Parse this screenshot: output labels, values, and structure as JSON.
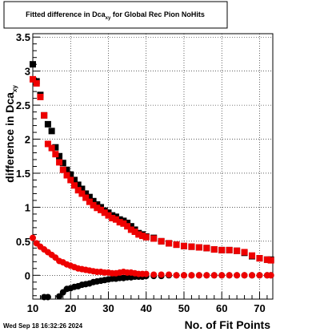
{
  "title_box": {
    "prefix": "Fitted difference in Dca",
    "subscript": "xy",
    "suffix": " for Global Rec Pion NoHits"
  },
  "footer": {
    "timestamp": "Wed Sep 18 16:32:26 2024"
  },
  "chart_data": {
    "type": "scatter",
    "xlabel": "No. of Fit Points",
    "ylabel": {
      "prefix": "difference in Dca",
      "subscript": "xy"
    },
    "xlim": [
      10,
      73.5
    ],
    "ylim": [
      -0.35,
      3.55
    ],
    "x_ticks": [
      10,
      20,
      30,
      40,
      50,
      60,
      70
    ],
    "y_ticks": [
      0,
      0.5,
      1,
      1.5,
      2,
      2.5,
      3,
      3.5
    ],
    "y_tick_labels": [
      "0",
      "0.5",
      "1",
      "1.5",
      "2",
      "2.5",
      "3",
      "3.5"
    ],
    "grid": true,
    "colors": {
      "black": "#000000",
      "red": "#ee0000"
    },
    "series": [
      {
        "color": "black",
        "marker": "square",
        "x": [
          10,
          11,
          12,
          13,
          14,
          15,
          16,
          17,
          18,
          19,
          20,
          21,
          22,
          23,
          24,
          25,
          26,
          27,
          28,
          29,
          30,
          31,
          32,
          33,
          34,
          35,
          36,
          37,
          38,
          39,
          40,
          42,
          44,
          46,
          48,
          50,
          52,
          54,
          56,
          58,
          60,
          62,
          64,
          66,
          68,
          70,
          72,
          73
        ],
        "y": [
          3.1,
          2.85,
          2.65,
          2.35,
          2.22,
          2.12,
          1.88,
          1.75,
          1.65,
          1.55,
          1.48,
          1.4,
          1.33,
          1.27,
          1.2,
          1.15,
          1.09,
          1.04,
          1.0,
          0.95,
          0.92,
          0.88,
          0.86,
          0.82,
          0.8,
          0.77,
          0.72,
          0.67,
          0.62,
          0.6,
          0.57,
          0.55,
          0.5,
          0.47,
          0.45,
          0.43,
          0.42,
          0.41,
          0.4,
          0.38,
          0.37,
          0.37,
          0.36,
          0.33,
          0.28,
          0.25,
          0.23,
          0.23
        ]
      },
      {
        "color": "red",
        "marker": "square",
        "x": [
          10,
          11,
          12,
          13,
          14,
          15,
          16,
          17,
          18,
          19,
          20,
          21,
          22,
          23,
          24,
          25,
          26,
          27,
          28,
          29,
          30,
          31,
          32,
          33,
          34,
          35,
          36,
          37,
          38,
          39,
          40,
          42,
          44,
          46,
          48,
          50,
          52,
          54,
          56,
          58,
          60,
          62,
          64,
          66,
          68,
          70,
          72,
          73
        ],
        "y": [
          2.88,
          2.82,
          2.62,
          2.35,
          1.93,
          1.87,
          1.78,
          1.66,
          1.55,
          1.47,
          1.4,
          1.32,
          1.25,
          1.2,
          1.14,
          1.08,
          1.03,
          0.99,
          0.96,
          0.92,
          0.88,
          0.84,
          0.82,
          0.78,
          0.76,
          0.72,
          0.67,
          0.64,
          0.6,
          0.58,
          0.56,
          0.54,
          0.5,
          0.47,
          0.45,
          0.43,
          0.42,
          0.41,
          0.4,
          0.38,
          0.37,
          0.37,
          0.36,
          0.34,
          0.29,
          0.25,
          0.23,
          0.22
        ]
      },
      {
        "color": "black",
        "marker": "circle",
        "x": [
          13,
          14,
          17,
          18,
          19,
          20,
          21,
          22,
          23,
          24,
          25,
          26,
          27,
          28,
          29,
          30,
          31,
          32,
          33,
          34,
          35,
          36,
          37,
          38,
          39,
          40,
          42,
          44,
          46,
          48,
          50,
          52,
          54,
          56,
          58,
          60,
          62,
          64,
          66,
          68,
          70,
          72,
          73
        ],
        "y": [
          -0.32,
          -0.32,
          -0.31,
          -0.25,
          -0.2,
          -0.19,
          -0.17,
          -0.16,
          -0.14,
          -0.13,
          -0.12,
          -0.1,
          -0.09,
          -0.08,
          -0.07,
          -0.06,
          -0.05,
          -0.05,
          -0.04,
          -0.04,
          -0.03,
          -0.03,
          -0.02,
          -0.02,
          -0.02,
          -0.01,
          -0.01,
          -0.01,
          0.0,
          0.0,
          0.0,
          0.0,
          0.0,
          0.0,
          0.0,
          0.0,
          0.0,
          0.0,
          0.0,
          0.0,
          0.0,
          0.0,
          0.0
        ]
      },
      {
        "color": "red",
        "marker": "circle",
        "x": [
          10,
          11,
          12,
          13,
          14,
          15,
          16,
          17,
          18,
          19,
          20,
          21,
          22,
          23,
          24,
          25,
          26,
          27,
          28,
          29,
          30,
          31,
          32,
          33,
          34,
          35,
          36,
          37,
          38,
          39,
          40,
          42,
          44,
          46,
          48,
          50,
          52,
          54,
          56,
          58,
          60,
          62,
          64,
          66,
          68,
          70,
          72,
          73
        ],
        "y": [
          0.55,
          0.47,
          0.42,
          0.38,
          0.34,
          0.3,
          0.26,
          0.21,
          0.19,
          0.16,
          0.14,
          0.12,
          0.1,
          0.09,
          0.08,
          0.07,
          0.06,
          0.05,
          0.05,
          0.04,
          0.04,
          0.03,
          0.03,
          0.04,
          0.05,
          0.04,
          0.04,
          0.03,
          0.02,
          0.02,
          0.02,
          0.01,
          0.01,
          0.01,
          0.0,
          0.0,
          0.0,
          0.0,
          0.0,
          0.0,
          0.0,
          0.0,
          0.0,
          0.0,
          0.0,
          0.0,
          0.0,
          0.0
        ]
      }
    ]
  }
}
